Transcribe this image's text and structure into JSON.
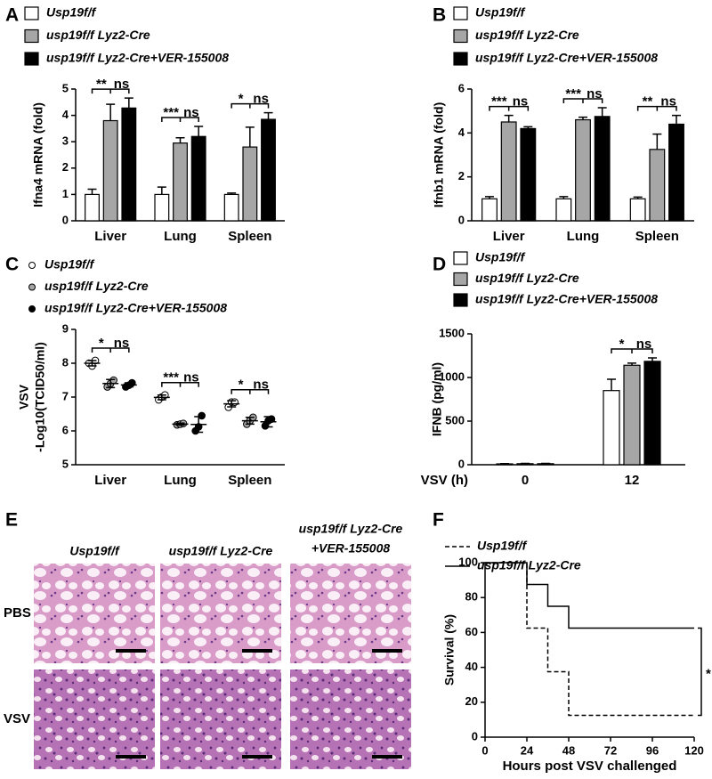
{
  "chart_data": [
    {
      "panel": "A",
      "type": "bar",
      "ylabel": "Ifna4 mRNA (fold)",
      "categories": [
        "Liver",
        "Lung",
        "Spleen"
      ],
      "ylim": [
        0,
        5
      ],
      "yticks": [
        0,
        1,
        2,
        3,
        4,
        5
      ],
      "series": [
        {
          "name": "Usp19f/f",
          "color": "#ffffff",
          "values": [
            1.0,
            1.0,
            1.0
          ],
          "errors": [
            0.2,
            0.28,
            0.05
          ]
        },
        {
          "name": "usp19f/f Lyz2-Cre",
          "color": "#a6a6a6",
          "values": [
            3.8,
            2.95,
            2.8
          ],
          "errors": [
            0.62,
            0.2,
            0.75
          ]
        },
        {
          "name": "usp19f/f Lyz2-Cre+VER-155008",
          "color": "#000000",
          "values": [
            4.28,
            3.2,
            3.85
          ],
          "errors": [
            0.38,
            0.38,
            0.25
          ]
        }
      ],
      "significance": [
        [
          "**",
          "ns"
        ],
        [
          "***",
          "ns"
        ],
        [
          "*",
          "ns"
        ]
      ]
    },
    {
      "panel": "B",
      "type": "bar",
      "ylabel": "Ifnb1 mRNA (fold)",
      "categories": [
        "Liver",
        "Lung",
        "Spleen"
      ],
      "ylim": [
        0,
        6
      ],
      "yticks": [
        0,
        2,
        4,
        6
      ],
      "series": [
        {
          "name": "Usp19f/f",
          "color": "#ffffff",
          "values": [
            1.0,
            1.0,
            1.0
          ],
          "errors": [
            0.1,
            0.1,
            0.08
          ]
        },
        {
          "name": "usp19f/f Lyz2-Cre",
          "color": "#a6a6a6",
          "values": [
            4.5,
            4.6,
            3.25
          ],
          "errors": [
            0.3,
            0.12,
            0.7
          ]
        },
        {
          "name": "usp19f/f Lyz2-Cre+VER-155008",
          "color": "#000000",
          "values": [
            4.2,
            4.75,
            4.4
          ],
          "errors": [
            0.08,
            0.4,
            0.4
          ]
        }
      ],
      "significance": [
        [
          "***",
          "ns"
        ],
        [
          "***",
          "ns"
        ],
        [
          "**",
          "ns"
        ]
      ]
    },
    {
      "panel": "C",
      "type": "scatter",
      "ylabel": [
        "VSV",
        "-Log10(TCID50/ml)"
      ],
      "categories": [
        "Liver",
        "Lung",
        "Spleen"
      ],
      "ylim": [
        5,
        9
      ],
      "yticks": [
        5,
        6,
        7,
        8,
        9
      ],
      "series": [
        {
          "name": "Usp19f/f",
          "color": "#ffffff",
          "points": [
            [
              8.0,
              7.92,
              8.08
            ],
            [
              6.92,
              7.0,
              7.06
            ],
            [
              6.7,
              6.85,
              6.85
            ]
          ],
          "means": [
            8.0,
            6.99,
            6.8
          ],
          "errors": [
            0.08,
            0.07,
            0.09
          ]
        },
        {
          "name": "usp19f/f Lyz2-Cre",
          "color": "#a6a6a6",
          "points": [
            [
              7.3,
              7.4,
              7.5
            ],
            [
              6.18,
              6.2,
              6.22
            ],
            [
              6.2,
              6.3,
              6.4
            ]
          ],
          "means": [
            7.4,
            6.2,
            6.3
          ],
          "errors": [
            0.12,
            0.03,
            0.1
          ]
        },
        {
          "name": "usp19f/f Lyz2-Cre+VER-155008",
          "color": "#000000",
          "points": [
            [
              7.3,
              7.35,
              7.42
            ],
            [
              6.0,
              6.12,
              6.45
            ],
            [
              6.15,
              6.3,
              6.35
            ]
          ],
          "means": [
            7.36,
            6.19,
            6.27
          ],
          "errors": [
            0.06,
            0.23,
            0.15
          ]
        }
      ],
      "significance": [
        [
          "*",
          "ns"
        ],
        [
          "***",
          "ns"
        ],
        [
          "*",
          "ns"
        ]
      ]
    },
    {
      "panel": "D",
      "type": "bar",
      "ylabel": "IFNB (pg/ml)",
      "xlabel": "VSV (h)",
      "categories": [
        "0",
        "12"
      ],
      "ylim": [
        0,
        1500
      ],
      "yticks": [
        0,
        500,
        1000,
        1500
      ],
      "series": [
        {
          "name": "Usp19f/f",
          "color": "#ffffff",
          "values": [
            10,
            850
          ],
          "errors": [
            3,
            130
          ]
        },
        {
          "name": "usp19f/f Lyz2-Cre",
          "color": "#a6a6a6",
          "values": [
            12,
            1140
          ],
          "errors": [
            3,
            25
          ]
        },
        {
          "name": "usp19f/f Lyz2-Cre+VER-155008",
          "color": "#000000",
          "values": [
            12,
            1185
          ],
          "errors": [
            3,
            40
          ]
        }
      ],
      "significance": [
        null,
        [
          "*",
          "ns"
        ]
      ]
    },
    {
      "panel": "F",
      "type": "line",
      "ylabel": "Survival (%)",
      "xlabel": "Hours post VSV challenged",
      "xlim": [
        0,
        120
      ],
      "xticks": [
        0,
        24,
        48,
        72,
        96,
        120
      ],
      "ylim": [
        0,
        100
      ],
      "yticks": [
        0,
        20,
        40,
        60,
        80,
        100
      ],
      "series": [
        {
          "name": "Usp19f/f",
          "color": "#000000",
          "line_style": "dashed",
          "x": [
            0,
            24,
            24,
            36,
            36,
            48,
            48,
            120
          ],
          "y": [
            100,
            100,
            62.5,
            62.5,
            37.5,
            37.5,
            12.5,
            12.5
          ]
        },
        {
          "name": "usp19f/f Lyz2-Cre",
          "color": "#000000",
          "line_style": "solid",
          "x": [
            0,
            24,
            24,
            36,
            36,
            48,
            48,
            120
          ],
          "y": [
            100,
            100,
            87.5,
            87.5,
            75,
            75,
            62.5,
            62.5
          ]
        }
      ],
      "significance": "*"
    }
  ],
  "histology": {
    "panel": "E",
    "columns": [
      [
        "Usp19f/f"
      ],
      [
        "usp19f/f Lyz2-Cre"
      ],
      [
        "usp19f/f Lyz2-Cre",
        "+VER-155008"
      ]
    ],
    "rows": [
      "PBS",
      "VSV"
    ]
  }
}
